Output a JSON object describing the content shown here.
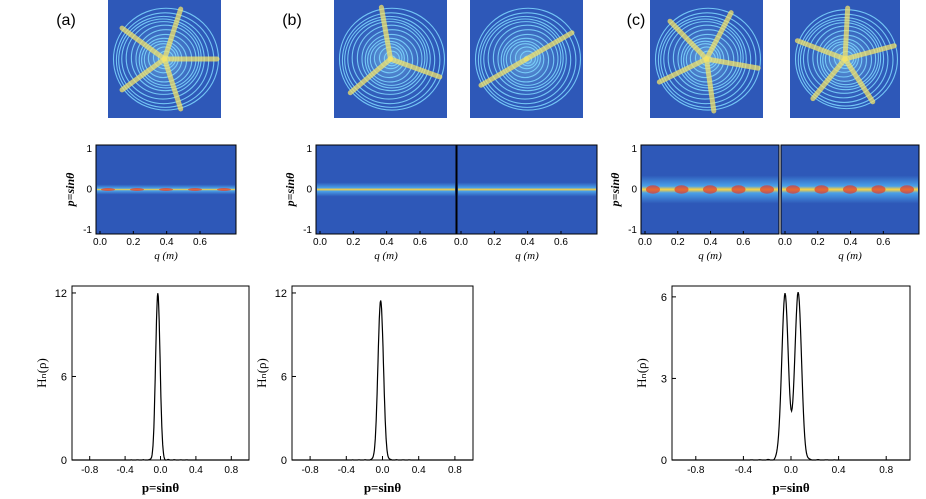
{
  "figure": {
    "panels": [
      {
        "label": "(a)",
        "patterns": [
          "a"
        ]
      },
      {
        "label": "(b)",
        "patterns": [
          "b1",
          "b2"
        ]
      },
      {
        "label": "(c)",
        "patterns": [
          "c1",
          "c2"
        ]
      }
    ],
    "husimi": {
      "ylabel": "p=sinθ",
      "xlabel": "q (m)",
      "yticks": [
        "1",
        "0",
        "-1"
      ],
      "xticks": [
        "0.0",
        "0.2",
        "0.4",
        "0.6"
      ]
    },
    "distribution": {
      "ylabel": "Hₙ(ρ)",
      "xlabel": "p=sinθ",
      "xticks": [
        "-0.8",
        "-0.4",
        "0.0",
        "0.4",
        "0.8"
      ]
    },
    "colors": {
      "background": "#2e58b8",
      "ring": "#7fd8ff",
      "ridge": "#f2e26a",
      "hot": "#e23a2a",
      "line": "#000000"
    }
  },
  "chart_data": [
    {
      "type": "line",
      "title": "(a)",
      "xlabel": "p=sinθ",
      "ylabel": "Hₙ(ρ)",
      "xlim": [
        -1.0,
        1.0
      ],
      "ylim": [
        0,
        12.5
      ],
      "yticks": [
        0,
        6,
        12
      ],
      "series": [
        {
          "name": "single peak",
          "peaks": [
            {
              "center": -0.03,
              "height": 12.0,
              "width": 0.025
            }
          ]
        }
      ]
    },
    {
      "type": "line",
      "title": "(b)",
      "xlabel": "p=sinθ",
      "ylabel": "Hₙ(ρ)",
      "xlim": [
        -1.0,
        1.0
      ],
      "ylim": [
        0,
        12.5
      ],
      "yticks": [
        0,
        6,
        12
      ],
      "series": [
        {
          "name": "single peak",
          "peaks": [
            {
              "center": -0.02,
              "height": 11.5,
              "width": 0.03
            }
          ]
        }
      ]
    },
    {
      "type": "line",
      "title": "(c)",
      "xlabel": "p=sinθ",
      "ylabel": "Hₙ(ρ)",
      "xlim": [
        -1.0,
        1.0
      ],
      "ylim": [
        0,
        6.4
      ],
      "yticks": [
        0,
        3,
        6
      ],
      "series": [
        {
          "name": "double peak",
          "peaks": [
            {
              "center": -0.05,
              "height": 6.1,
              "width": 0.028
            },
            {
              "center": 0.06,
              "height": 6.2,
              "width": 0.028
            }
          ]
        }
      ]
    }
  ]
}
